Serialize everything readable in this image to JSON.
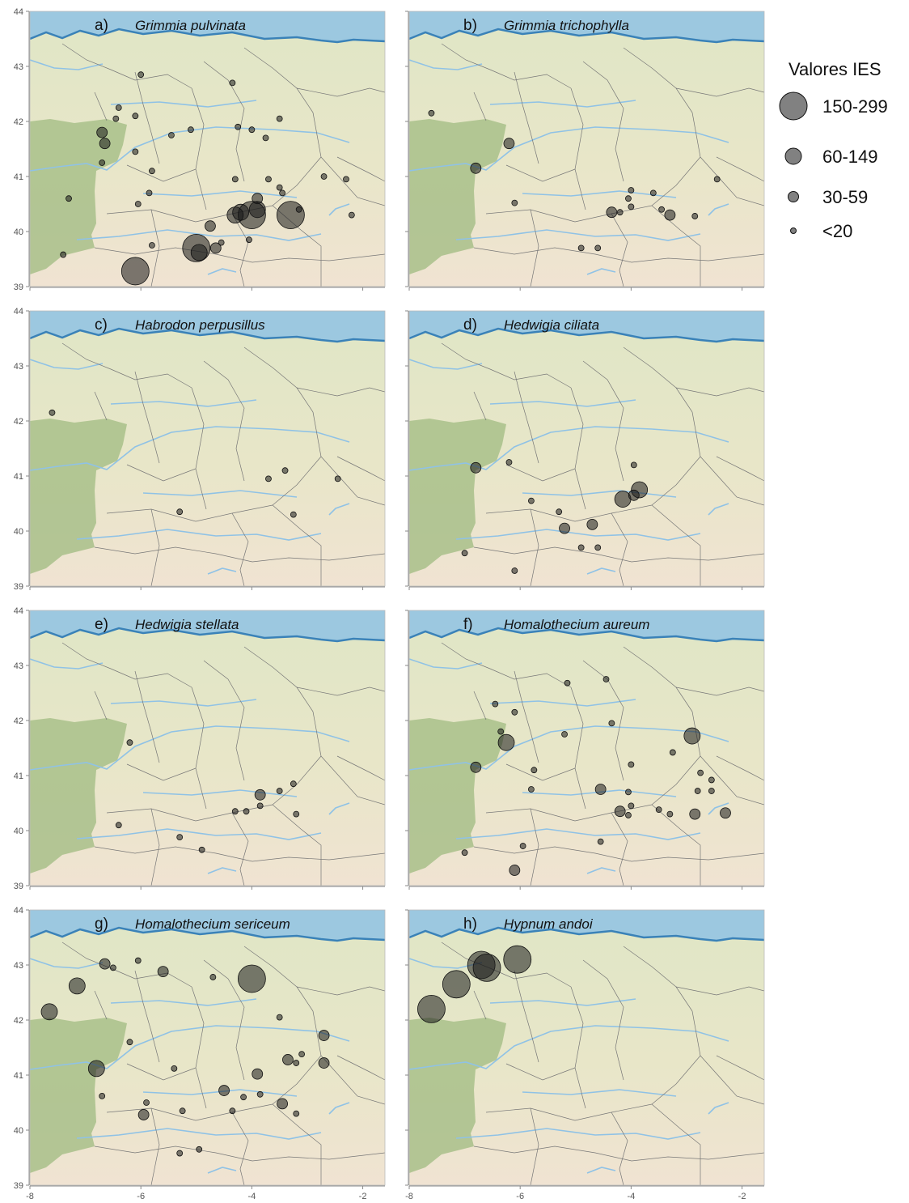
{
  "legend": {
    "title": "Valores IES",
    "items": [
      {
        "label": "150-299",
        "class": "150-299"
      },
      {
        "label": "60-149",
        "class": "60-149"
      },
      {
        "label": "30-59",
        "class": "30-59"
      },
      {
        "label": "<20",
        "class": "<20"
      }
    ]
  },
  "axes": {
    "lon_ticks": [
      "-8",
      "-6",
      "-4",
      "-2"
    ],
    "lat_ticks": [
      "39",
      "40",
      "41",
      "42",
      "43",
      "44"
    ],
    "lon_range": [
      -8,
      -1.6
    ],
    "lat_range": [
      39,
      44
    ]
  },
  "colors": {
    "sea": "#9cc8e0",
    "coast": "#3a82b8",
    "land": "#e6e8c8",
    "portugal": "#a8bf8a",
    "river": "#8fc2e6",
    "border": "#777777",
    "marker": "#1a1a1a"
  },
  "panels": [
    {
      "letter": "a)",
      "species": "Grimmia pulvinata",
      "points": [
        {
          "lon": -6.0,
          "lat": 42.85,
          "class": "<20"
        },
        {
          "lon": -4.35,
          "lat": 42.7,
          "class": "<20"
        },
        {
          "lon": -6.4,
          "lat": 42.25,
          "class": "<20"
        },
        {
          "lon": -6.45,
          "lat": 42.05,
          "class": "<20"
        },
        {
          "lon": -6.1,
          "lat": 42.1,
          "class": "<20"
        },
        {
          "lon": -6.7,
          "lat": 41.8,
          "class": "30-59"
        },
        {
          "lon": -6.65,
          "lat": 41.6,
          "class": "30-59"
        },
        {
          "lon": -6.1,
          "lat": 41.45,
          "class": "<20"
        },
        {
          "lon": -5.45,
          "lat": 41.75,
          "class": "<20"
        },
        {
          "lon": -5.1,
          "lat": 41.85,
          "class": "<20"
        },
        {
          "lon": -4.25,
          "lat": 41.9,
          "class": "<20"
        },
        {
          "lon": -4.0,
          "lat": 41.85,
          "class": "<20"
        },
        {
          "lon": -3.5,
          "lat": 42.05,
          "class": "<20"
        },
        {
          "lon": -3.75,
          "lat": 41.7,
          "class": "<20"
        },
        {
          "lon": -6.7,
          "lat": 41.25,
          "class": "<20"
        },
        {
          "lon": -5.8,
          "lat": 41.1,
          "class": "<20"
        },
        {
          "lon": -4.3,
          "lat": 40.95,
          "class": "<20"
        },
        {
          "lon": -3.7,
          "lat": 40.95,
          "class": "<20"
        },
        {
          "lon": -3.5,
          "lat": 40.8,
          "class": "<20"
        },
        {
          "lon": -2.7,
          "lat": 41.0,
          "class": "<20"
        },
        {
          "lon": -2.3,
          "lat": 40.95,
          "class": "<20"
        },
        {
          "lon": -7.3,
          "lat": 40.6,
          "class": "<20"
        },
        {
          "lon": -5.85,
          "lat": 40.7,
          "class": "<20"
        },
        {
          "lon": -6.05,
          "lat": 40.5,
          "class": "<20"
        },
        {
          "lon": -3.9,
          "lat": 40.6,
          "class": "30-59"
        },
        {
          "lon": -3.45,
          "lat": 40.7,
          "class": "<20"
        },
        {
          "lon": -3.9,
          "lat": 40.4,
          "class": "60-149"
        },
        {
          "lon": -4.2,
          "lat": 40.35,
          "class": "60-149"
        },
        {
          "lon": -4.0,
          "lat": 40.3,
          "class": "150-299"
        },
        {
          "lon": -4.3,
          "lat": 40.3,
          "class": "60-149"
        },
        {
          "lon": -3.3,
          "lat": 40.3,
          "class": "150-299"
        },
        {
          "lon": -3.15,
          "lat": 40.4,
          "class": "<20"
        },
        {
          "lon": -2.2,
          "lat": 40.3,
          "class": "<20"
        },
        {
          "lon": -4.75,
          "lat": 40.1,
          "class": "30-59"
        },
        {
          "lon": -4.05,
          "lat": 39.85,
          "class": "<20"
        },
        {
          "lon": -5.8,
          "lat": 39.75,
          "class": "<20"
        },
        {
          "lon": -5.0,
          "lat": 39.7,
          "class": "150-299"
        },
        {
          "lon": -4.95,
          "lat": 39.62,
          "class": "60-149"
        },
        {
          "lon": -4.65,
          "lat": 39.7,
          "class": "30-59"
        },
        {
          "lon": -4.55,
          "lat": 39.8,
          "class": "<20"
        },
        {
          "lon": -7.4,
          "lat": 39.58,
          "class": "<20"
        },
        {
          "lon": -6.1,
          "lat": 39.28,
          "class": "150-299"
        }
      ]
    },
    {
      "letter": "b)",
      "species": "Grimmia trichophylla",
      "points": [
        {
          "lon": -7.6,
          "lat": 42.15,
          "class": "<20"
        },
        {
          "lon": -6.2,
          "lat": 41.6,
          "class": "30-59"
        },
        {
          "lon": -6.8,
          "lat": 41.15,
          "class": "30-59"
        },
        {
          "lon": -6.1,
          "lat": 40.52,
          "class": "<20"
        },
        {
          "lon": -4.0,
          "lat": 40.75,
          "class": "<20"
        },
        {
          "lon": -4.05,
          "lat": 40.6,
          "class": "<20"
        },
        {
          "lon": -3.6,
          "lat": 40.7,
          "class": "<20"
        },
        {
          "lon": -4.0,
          "lat": 40.45,
          "class": "<20"
        },
        {
          "lon": -4.35,
          "lat": 40.35,
          "class": "30-59"
        },
        {
          "lon": -4.2,
          "lat": 40.35,
          "class": "<20"
        },
        {
          "lon": -3.45,
          "lat": 40.4,
          "class": "<20"
        },
        {
          "lon": -3.3,
          "lat": 40.3,
          "class": "30-59"
        },
        {
          "lon": -2.85,
          "lat": 40.28,
          "class": "<20"
        },
        {
          "lon": -2.45,
          "lat": 40.95,
          "class": "<20"
        },
        {
          "lon": -4.9,
          "lat": 39.7,
          "class": "<20"
        },
        {
          "lon": -4.6,
          "lat": 39.7,
          "class": "<20"
        }
      ]
    },
    {
      "letter": "c)",
      "species": "Habrodon perpusillus",
      "points": [
        {
          "lon": -7.6,
          "lat": 42.15,
          "class": "<20"
        },
        {
          "lon": -3.7,
          "lat": 40.95,
          "class": "<20"
        },
        {
          "lon": -3.4,
          "lat": 41.1,
          "class": "<20"
        },
        {
          "lon": -2.45,
          "lat": 40.95,
          "class": "<20"
        },
        {
          "lon": -5.3,
          "lat": 40.35,
          "class": "<20"
        },
        {
          "lon": -3.25,
          "lat": 40.3,
          "class": "<20"
        }
      ]
    },
    {
      "letter": "d)",
      "species": "Hedwigia ciliata",
      "points": [
        {
          "lon": -6.8,
          "lat": 41.15,
          "class": "30-59"
        },
        {
          "lon": -6.2,
          "lat": 41.25,
          "class": "<20"
        },
        {
          "lon": -3.95,
          "lat": 41.2,
          "class": "<20"
        },
        {
          "lon": -3.85,
          "lat": 40.75,
          "class": "60-149"
        },
        {
          "lon": -4.15,
          "lat": 40.58,
          "class": "60-149"
        },
        {
          "lon": -3.95,
          "lat": 40.65,
          "class": "30-59"
        },
        {
          "lon": -5.8,
          "lat": 40.55,
          "class": "<20"
        },
        {
          "lon": -5.3,
          "lat": 40.35,
          "class": "<20"
        },
        {
          "lon": -5.2,
          "lat": 40.05,
          "class": "30-59"
        },
        {
          "lon": -4.7,
          "lat": 40.12,
          "class": "30-59"
        },
        {
          "lon": -7.0,
          "lat": 39.6,
          "class": "<20"
        },
        {
          "lon": -4.9,
          "lat": 39.7,
          "class": "<20"
        },
        {
          "lon": -4.6,
          "lat": 39.7,
          "class": "<20"
        },
        {
          "lon": -6.1,
          "lat": 39.28,
          "class": "<20"
        }
      ]
    },
    {
      "letter": "e)",
      "species": "Hedwigia stellata",
      "points": [
        {
          "lon": -6.2,
          "lat": 41.6,
          "class": "<20"
        },
        {
          "lon": -3.85,
          "lat": 40.65,
          "class": "30-59"
        },
        {
          "lon": -3.5,
          "lat": 40.72,
          "class": "<20"
        },
        {
          "lon": -3.25,
          "lat": 40.85,
          "class": "<20"
        },
        {
          "lon": -3.85,
          "lat": 40.45,
          "class": "<20"
        },
        {
          "lon": -4.3,
          "lat": 40.35,
          "class": "<20"
        },
        {
          "lon": -4.1,
          "lat": 40.35,
          "class": "<20"
        },
        {
          "lon": -3.2,
          "lat": 40.3,
          "class": "<20"
        },
        {
          "lon": -6.4,
          "lat": 40.1,
          "class": "<20"
        },
        {
          "lon": -5.3,
          "lat": 39.88,
          "class": "<20"
        },
        {
          "lon": -4.9,
          "lat": 39.65,
          "class": "<20"
        }
      ]
    },
    {
      "letter": "f)",
      "species": "Homalothecium aureum",
      "points": [
        {
          "lon": -5.15,
          "lat": 42.68,
          "class": "<20"
        },
        {
          "lon": -4.45,
          "lat": 42.75,
          "class": "<20"
        },
        {
          "lon": -6.45,
          "lat": 42.3,
          "class": "<20"
        },
        {
          "lon": -6.1,
          "lat": 42.15,
          "class": "<20"
        },
        {
          "lon": -4.35,
          "lat": 41.95,
          "class": "<20"
        },
        {
          "lon": -5.2,
          "lat": 41.75,
          "class": "<20"
        },
        {
          "lon": -2.9,
          "lat": 41.72,
          "class": "60-149"
        },
        {
          "lon": -6.25,
          "lat": 41.6,
          "class": "60-149"
        },
        {
          "lon": -6.35,
          "lat": 41.8,
          "class": "<20"
        },
        {
          "lon": -3.25,
          "lat": 41.42,
          "class": "<20"
        },
        {
          "lon": -6.8,
          "lat": 41.15,
          "class": "30-59"
        },
        {
          "lon": -5.75,
          "lat": 41.1,
          "class": "<20"
        },
        {
          "lon": -4.0,
          "lat": 41.2,
          "class": "<20"
        },
        {
          "lon": -4.55,
          "lat": 40.75,
          "class": "30-59"
        },
        {
          "lon": -5.8,
          "lat": 40.75,
          "class": "<20"
        },
        {
          "lon": -4.05,
          "lat": 40.7,
          "class": "<20"
        },
        {
          "lon": -2.75,
          "lat": 41.05,
          "class": "<20"
        },
        {
          "lon": -2.55,
          "lat": 40.92,
          "class": "<20"
        },
        {
          "lon": -2.8,
          "lat": 40.72,
          "class": "<20"
        },
        {
          "lon": -2.55,
          "lat": 40.72,
          "class": "<20"
        },
        {
          "lon": -4.2,
          "lat": 40.35,
          "class": "30-59"
        },
        {
          "lon": -4.0,
          "lat": 40.45,
          "class": "<20"
        },
        {
          "lon": -4.05,
          "lat": 40.28,
          "class": "<20"
        },
        {
          "lon": -3.5,
          "lat": 40.38,
          "class": "<20"
        },
        {
          "lon": -3.3,
          "lat": 40.3,
          "class": "<20"
        },
        {
          "lon": -2.85,
          "lat": 40.3,
          "class": "30-59"
        },
        {
          "lon": -2.3,
          "lat": 40.32,
          "class": "30-59"
        },
        {
          "lon": -5.95,
          "lat": 39.72,
          "class": "<20"
        },
        {
          "lon": -4.55,
          "lat": 39.8,
          "class": "<20"
        },
        {
          "lon": -7.0,
          "lat": 39.6,
          "class": "<20"
        },
        {
          "lon": -6.1,
          "lat": 39.28,
          "class": "30-59"
        }
      ]
    },
    {
      "letter": "g)",
      "species": "Homalothecium sericeum",
      "points": [
        {
          "lon": -6.65,
          "lat": 43.02,
          "class": "30-59"
        },
        {
          "lon": -6.5,
          "lat": 42.95,
          "class": "<20"
        },
        {
          "lon": -6.05,
          "lat": 43.08,
          "class": "<20"
        },
        {
          "lon": -5.6,
          "lat": 42.88,
          "class": "30-59"
        },
        {
          "lon": -4.7,
          "lat": 42.78,
          "class": "<20"
        },
        {
          "lon": -4.0,
          "lat": 42.75,
          "class": "150-299"
        },
        {
          "lon": -7.15,
          "lat": 42.62,
          "class": "60-149"
        },
        {
          "lon": -7.65,
          "lat": 42.15,
          "class": "60-149"
        },
        {
          "lon": -3.5,
          "lat": 42.05,
          "class": "<20"
        },
        {
          "lon": -2.7,
          "lat": 41.72,
          "class": "30-59"
        },
        {
          "lon": -6.2,
          "lat": 41.6,
          "class": "<20"
        },
        {
          "lon": -3.35,
          "lat": 41.28,
          "class": "30-59"
        },
        {
          "lon": -3.2,
          "lat": 41.22,
          "class": "<20"
        },
        {
          "lon": -3.1,
          "lat": 41.38,
          "class": "<20"
        },
        {
          "lon": -2.7,
          "lat": 41.22,
          "class": "30-59"
        },
        {
          "lon": -6.8,
          "lat": 41.12,
          "class": "60-149"
        },
        {
          "lon": -5.4,
          "lat": 41.12,
          "class": "<20"
        },
        {
          "lon": -3.9,
          "lat": 41.02,
          "class": "30-59"
        },
        {
          "lon": -4.5,
          "lat": 40.72,
          "class": "30-59"
        },
        {
          "lon": -4.15,
          "lat": 40.6,
          "class": "<20"
        },
        {
          "lon": -3.85,
          "lat": 40.65,
          "class": "<20"
        },
        {
          "lon": -6.7,
          "lat": 40.62,
          "class": "<20"
        },
        {
          "lon": -5.9,
          "lat": 40.5,
          "class": "<20"
        },
        {
          "lon": -3.45,
          "lat": 40.48,
          "class": "30-59"
        },
        {
          "lon": -5.95,
          "lat": 40.28,
          "class": "30-59"
        },
        {
          "lon": -5.25,
          "lat": 40.35,
          "class": "<20"
        },
        {
          "lon": -4.35,
          "lat": 40.35,
          "class": "<20"
        },
        {
          "lon": -3.2,
          "lat": 40.3,
          "class": "<20"
        },
        {
          "lon": -5.3,
          "lat": 39.58,
          "class": "<20"
        },
        {
          "lon": -4.95,
          "lat": 39.65,
          "class": "<20"
        }
      ]
    },
    {
      "letter": "h)",
      "species": "Hypnum andoi",
      "points": [
        {
          "lon": -6.7,
          "lat": 43.0,
          "class": "150-299"
        },
        {
          "lon": -6.6,
          "lat": 42.95,
          "class": "150-299"
        },
        {
          "lon": -6.05,
          "lat": 43.1,
          "class": "150-299"
        },
        {
          "lon": -7.15,
          "lat": 42.65,
          "class": "150-299"
        },
        {
          "lon": -7.6,
          "lat": 42.2,
          "class": "150-299"
        }
      ]
    }
  ]
}
